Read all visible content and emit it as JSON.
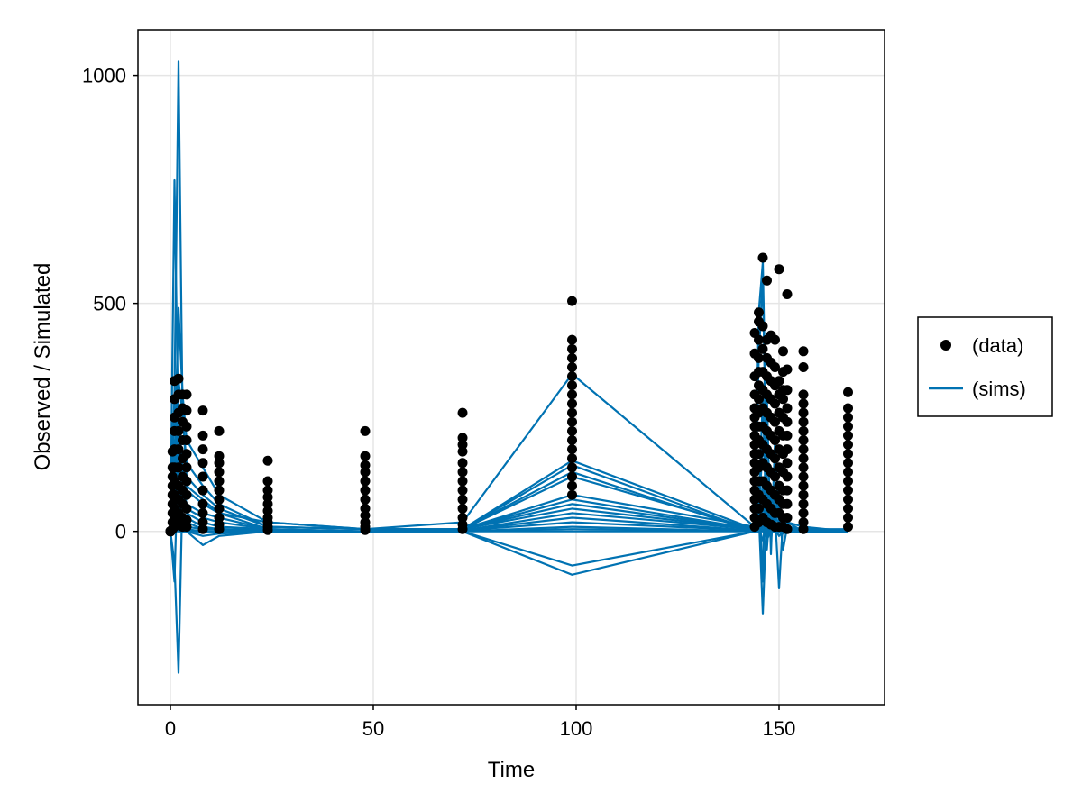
{
  "chart_data": {
    "type": "scatter",
    "title": "",
    "xlabel": "Time",
    "ylabel": "Observed / Simulated",
    "xlim": [
      -8,
      176
    ],
    "ylim": [
      -380,
      1100
    ],
    "xticks": [
      0,
      50,
      100,
      150
    ],
    "yticks": [
      0,
      500,
      1000
    ],
    "grid": true,
    "legend_position": "right",
    "colors": {
      "data": "#000000",
      "sims": "#0072b2"
    },
    "legend": [
      {
        "name": "(data)",
        "kind": "marker"
      },
      {
        "name": "(sims)",
        "kind": "line"
      }
    ],
    "data_points": {
      "name": "(data)",
      "groups": [
        {
          "x": 0,
          "y": [
            0,
            0,
            0,
            0,
            0,
            0
          ]
        },
        {
          "x": 0.5,
          "y": [
            5,
            20,
            40,
            60,
            80,
            100,
            120,
            140,
            175
          ]
        },
        {
          "x": 1,
          "y": [
            10,
            30,
            50,
            80,
            110,
            140,
            180,
            220,
            250,
            290,
            330
          ]
        },
        {
          "x": 2,
          "y": [
            15,
            40,
            70,
            100,
            140,
            180,
            220,
            260,
            300,
            335
          ]
        },
        {
          "x": 3,
          "y": [
            10,
            30,
            60,
            90,
            120,
            160,
            200,
            240,
            270,
            300
          ]
        },
        {
          "x": 4,
          "y": [
            10,
            25,
            50,
            80,
            110,
            140,
            170,
            200,
            230,
            265,
            300
          ]
        },
        {
          "x": 8,
          "y": [
            5,
            20,
            40,
            60,
            90,
            120,
            150,
            180,
            210,
            265
          ]
        },
        {
          "x": 12,
          "y": [
            5,
            15,
            30,
            50,
            70,
            90,
            110,
            130,
            150,
            165,
            220
          ]
        },
        {
          "x": 24,
          "y": [
            3,
            10,
            20,
            30,
            45,
            60,
            75,
            90,
            110,
            155
          ]
        },
        {
          "x": 48,
          "y": [
            3,
            10,
            20,
            35,
            50,
            70,
            90,
            110,
            130,
            145,
            165,
            220
          ]
        },
        {
          "x": 72,
          "y": [
            5,
            15,
            30,
            50,
            70,
            90,
            110,
            130,
            150,
            175,
            190,
            205,
            260
          ]
        },
        {
          "x": 99,
          "y": [
            80,
            100,
            120,
            140,
            160,
            180,
            200,
            220,
            240,
            260,
            280,
            300,
            320,
            340,
            360,
            380,
            400,
            420,
            505
          ]
        },
        {
          "x": 144,
          "y": [
            10,
            30,
            50,
            70,
            90,
            110,
            130,
            150,
            170,
            190,
            210,
            230,
            250,
            270,
            300,
            340,
            390,
            435
          ]
        },
        {
          "x": 145,
          "y": [
            20,
            50,
            80,
            110,
            140,
            170,
            200,
            230,
            260,
            290,
            320,
            350,
            380,
            420,
            460,
            480
          ]
        },
        {
          "x": 146,
          "y": [
            30,
            70,
            110,
            150,
            190,
            230,
            270,
            310,
            350,
            400,
            450,
            600
          ]
        },
        {
          "x": 147,
          "y": [
            20,
            60,
            100,
            140,
            180,
            220,
            260,
            300,
            340,
            380,
            420,
            550
          ]
        },
        {
          "x": 148,
          "y": [
            15,
            50,
            90,
            130,
            170,
            210,
            250,
            290,
            330,
            370,
            430
          ]
        },
        {
          "x": 149,
          "y": [
            10,
            40,
            80,
            120,
            160,
            200,
            240,
            280,
            320,
            360,
            420
          ]
        },
        {
          "x": 150,
          "y": [
            10,
            40,
            70,
            100,
            140,
            180,
            220,
            260,
            300,
            330,
            575
          ]
        },
        {
          "x": 151,
          "y": [
            10,
            30,
            60,
            90,
            130,
            170,
            210,
            250,
            290,
            310,
            350,
            395
          ]
        },
        {
          "x": 152,
          "y": [
            5,
            30,
            60,
            90,
            120,
            150,
            180,
            210,
            240,
            270,
            310,
            355,
            520
          ]
        },
        {
          "x": 156,
          "y": [
            5,
            20,
            40,
            60,
            80,
            100,
            120,
            140,
            160,
            180,
            200,
            220,
            240,
            260,
            280,
            300,
            360,
            395
          ]
        },
        {
          "x": 167,
          "y": [
            10,
            30,
            50,
            70,
            90,
            110,
            130,
            150,
            170,
            190,
            210,
            230,
            250,
            270,
            305
          ]
        }
      ]
    },
    "sims": {
      "name": "(sims)",
      "x": [
        0,
        1,
        2,
        3,
        4,
        8,
        12,
        24,
        48,
        72,
        99,
        144,
        145,
        146,
        147,
        148,
        149,
        150,
        151,
        152,
        156,
        167
      ],
      "series": [
        {
          "y": [
            0,
            770,
            200,
            120,
            90,
            60,
            40,
            20,
            5,
            20,
            345,
            10,
            380,
            560,
            40,
            -20,
            60,
            30,
            20,
            10,
            5,
            0
          ]
        },
        {
          "y": [
            0,
            300,
            1030,
            250,
            150,
            100,
            60,
            10,
            5,
            5,
            155,
            5,
            480,
            590,
            120,
            10,
            80,
            40,
            30,
            20,
            10,
            0
          ]
        },
        {
          "y": [
            0,
            150,
            490,
            300,
            200,
            140,
            80,
            20,
            5,
            5,
            145,
            0,
            100,
            -110,
            300,
            -50,
            200,
            20,
            30,
            10,
            5,
            5
          ]
        },
        {
          "y": [
            0,
            100,
            330,
            260,
            120,
            80,
            50,
            10,
            5,
            5,
            130,
            0,
            50,
            300,
            -40,
            80,
            10,
            60,
            20,
            0,
            5,
            0
          ]
        },
        {
          "y": [
            0,
            50,
            250,
            140,
            100,
            70,
            40,
            5,
            0,
            5,
            120,
            5,
            30,
            200,
            100,
            20,
            40,
            -125,
            30,
            20,
            0,
            0
          ]
        },
        {
          "y": [
            0,
            -70,
            -310,
            100,
            60,
            40,
            30,
            5,
            0,
            5,
            80,
            10,
            40,
            -180,
            50,
            30,
            20,
            40,
            -40,
            10,
            0,
            0
          ]
        },
        {
          "y": [
            0,
            -110,
            200,
            80,
            50,
            30,
            20,
            5,
            0,
            5,
            70,
            5,
            20,
            100,
            60,
            10,
            30,
            20,
            10,
            5,
            0,
            0
          ]
        },
        {
          "y": [
            0,
            200,
            100,
            60,
            40,
            20,
            10,
            5,
            0,
            5,
            60,
            5,
            10,
            50,
            30,
            10,
            20,
            10,
            5,
            5,
            0,
            0
          ]
        },
        {
          "y": [
            0,
            100,
            60,
            40,
            30,
            10,
            5,
            2,
            0,
            5,
            50,
            5,
            5,
            40,
            20,
            5,
            10,
            5,
            5,
            0,
            0,
            0
          ]
        },
        {
          "y": [
            0,
            50,
            40,
            30,
            20,
            5,
            5,
            2,
            0,
            2,
            40,
            5,
            5,
            30,
            10,
            5,
            5,
            5,
            0,
            0,
            0,
            0
          ]
        },
        {
          "y": [
            0,
            30,
            20,
            15,
            10,
            5,
            5,
            2,
            0,
            2,
            30,
            2,
            0,
            20,
            10,
            0,
            5,
            0,
            0,
            0,
            0,
            0
          ]
        },
        {
          "y": [
            0,
            20,
            10,
            10,
            5,
            0,
            0,
            0,
            0,
            2,
            20,
            2,
            0,
            10,
            5,
            0,
            0,
            0,
            0,
            0,
            0,
            0
          ]
        },
        {
          "y": [
            0,
            10,
            5,
            5,
            0,
            0,
            0,
            0,
            0,
            0,
            10,
            0,
            0,
            5,
            0,
            0,
            0,
            0,
            0,
            0,
            0,
            0
          ]
        },
        {
          "y": [
            0,
            5,
            0,
            0,
            0,
            0,
            0,
            0,
            0,
            0,
            5,
            0,
            0,
            0,
            0,
            0,
            0,
            0,
            0,
            0,
            0,
            0
          ]
        },
        {
          "y": [
            0,
            0,
            0,
            0,
            0,
            0,
            0,
            0,
            0,
            0,
            0,
            0,
            0,
            0,
            0,
            0,
            0,
            0,
            0,
            0,
            0,
            0
          ]
        },
        {
          "y": [
            0,
            5,
            10,
            5,
            0,
            -30,
            -10,
            0,
            0,
            0,
            -75,
            0,
            5,
            20,
            -20,
            5,
            0,
            10,
            -5,
            0,
            0,
            0
          ]
        },
        {
          "y": [
            0,
            10,
            5,
            0,
            0,
            -10,
            -5,
            0,
            0,
            0,
            -95,
            0,
            10,
            -20,
            10,
            0,
            5,
            -10,
            0,
            0,
            0,
            0
          ]
        }
      ]
    }
  }
}
